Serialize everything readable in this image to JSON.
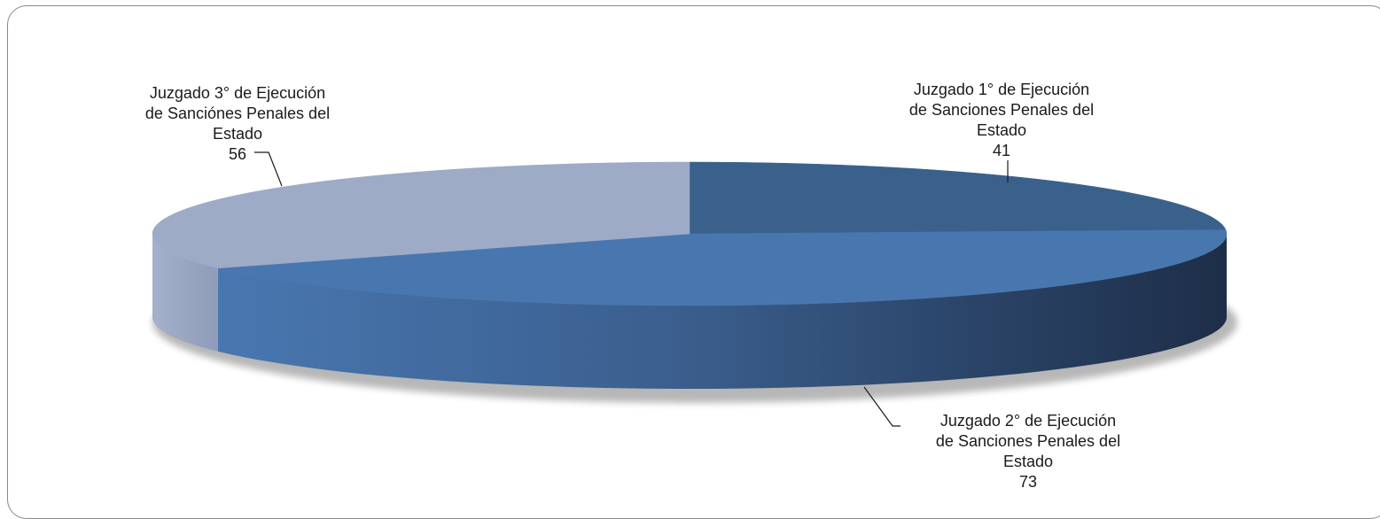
{
  "chart_data": {
    "type": "pie",
    "style": "3d",
    "title": "",
    "legend": "none",
    "slices": [
      {
        "label_lines": [
          "Juzgado 1° de Ejecución",
          "de Sanciones Penales del",
          "Estado"
        ],
        "value": 41,
        "value_text": "41",
        "color": "#3a618c"
      },
      {
        "label_lines": [
          "Juzgado 2° de Ejecución",
          "de Sanciones Penales del",
          "Estado"
        ],
        "value": 73,
        "value_text": "73",
        "color": "#4877b0"
      },
      {
        "label_lines": [
          "Juzgado 3° de Ejecución",
          "de Sanciónes Penales del",
          "Estado"
        ],
        "value": 56,
        "value_text": "56",
        "color": "#9eabc7"
      }
    ]
  }
}
